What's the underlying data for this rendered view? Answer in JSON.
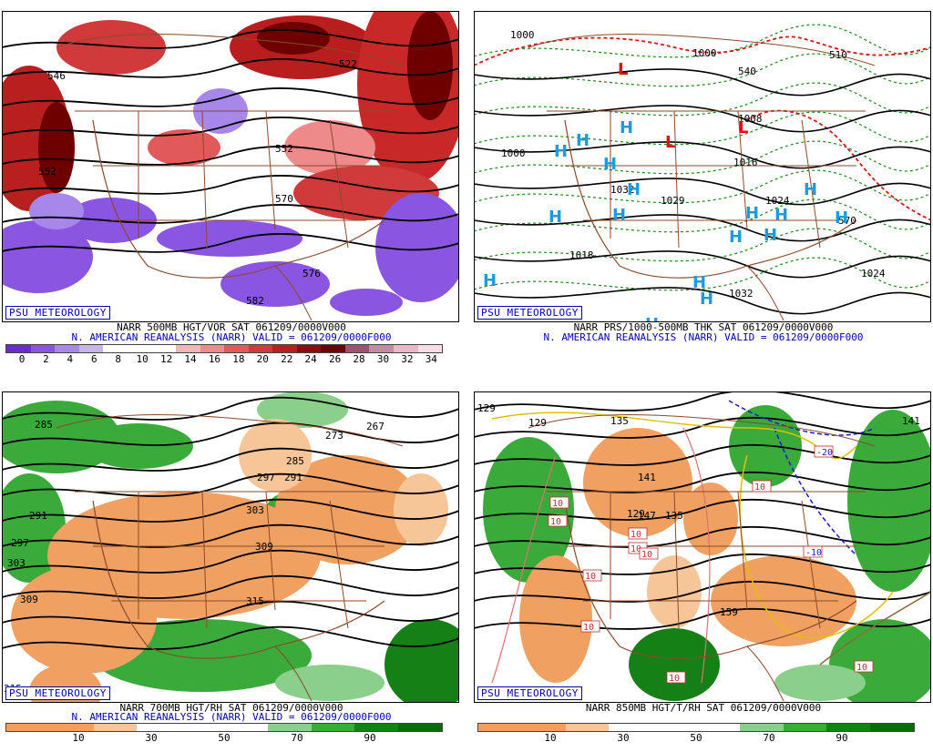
{
  "branding": "PSU METEOROLOGY",
  "panels": [
    {
      "id": "p500",
      "title_line1": "NARR 500MB HGT/VOR SAT 061209/0000V000",
      "title_line2": "N. AMERICAN REANALYSIS (NARR) VALID = 061209/0000F000",
      "colorbar": {
        "ticks": [
          "0",
          "2",
          "4",
          "6",
          "8",
          "10",
          "12",
          "14",
          "16",
          "18",
          "20",
          "22",
          "24",
          "26",
          "28",
          "30",
          "32",
          "34"
        ],
        "colors": [
          "#6a2bd0",
          "#8a55e0",
          "#a787ea",
          "#c7b3f2",
          "#ffffff",
          "#ffffff",
          "#ffffff",
          "#f5b5b5",
          "#ef8a8a",
          "#e25959",
          "#d03a3a",
          "#b81e1e",
          "#8e0c0c",
          "#6e0000",
          "#a0506e",
          "#c88aa0",
          "#e6b8c8",
          "#f6dde6"
        ]
      },
      "contour_labels": [
        "546",
        "570",
        "522",
        "552",
        "552",
        "582",
        "576"
      ]
    },
    {
      "id": "pmslp",
      "title_line1": "NARR PRS/1000-500MB THK SAT 061209/0000V000",
      "title_line2": "N. AMERICAN REANALYSIS (NARR) VALID = 061209/0000F000",
      "contour_labels": [
        "1000",
        "540",
        "1000",
        "1008",
        "1016",
        "1032",
        "1024",
        "1029",
        "1000",
        "1018",
        "1032",
        "1024",
        "510",
        "570"
      ],
      "high_label": "H",
      "low_label": "L",
      "colors": {
        "high": "#1e9be0",
        "low": "#e01010",
        "thickness_warm": "#e01010",
        "thickness_cold": "#1a8a1a"
      }
    },
    {
      "id": "p700",
      "title_line1": "NARR 700MB HGT/RH SAT 061209/0000V000",
      "title_line2": "N. AMERICAN REANALYSIS (NARR) VALID = 061209/0000F000",
      "colorbar": {
        "ticks": [
          "10",
          "30",
          "50",
          "70",
          "90"
        ],
        "colors": [
          "#f0a060",
          "#f0a060",
          "#f6c698",
          "#ffffff",
          "#ffffff",
          "#ffffff",
          "#8ad08a",
          "#3aaa3a",
          "#158015",
          "#0a6a0a"
        ]
      },
      "contour_labels": [
        "285",
        "273",
        "267",
        "285",
        "291",
        "297",
        "303",
        "309",
        "291",
        "297",
        "303",
        "309",
        "315",
        "315"
      ]
    },
    {
      "id": "p850",
      "title_line1": "NARR 850MB HGT/T/RH SAT 061209/0000V000",
      "title_line2": "",
      "colorbar": {
        "ticks": [
          "10",
          "30",
          "50",
          "70",
          "90"
        ],
        "colors": [
          "#f0a060",
          "#f0a060",
          "#f6c698",
          "#ffffff",
          "#ffffff",
          "#ffffff",
          "#8ad08a",
          "#3aaa3a",
          "#158015",
          "#0a6a0a"
        ]
      },
      "contour_labels": [
        "129",
        "135",
        "141",
        "147",
        "129",
        "135",
        "141",
        "129",
        "159"
      ],
      "temp_labels": [
        "10",
        "10",
        "10",
        "10",
        "10",
        "10",
        "-10",
        "-20",
        "10",
        "10",
        "10",
        "10"
      ]
    }
  ]
}
